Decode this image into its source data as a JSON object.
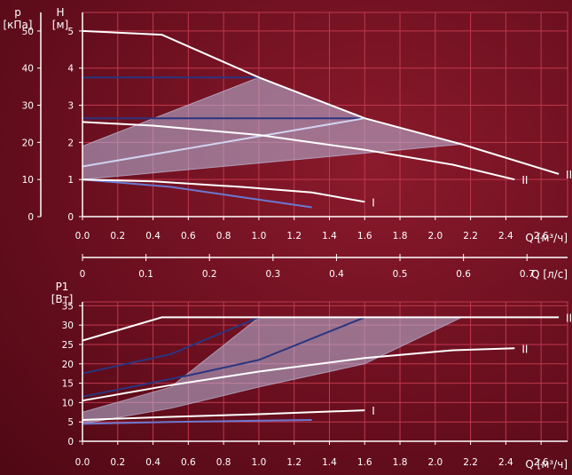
{
  "chart_data": [
    {
      "type": "line",
      "title": "",
      "left_axis": {
        "label_line1": "p",
        "label_line2": "[кПа]",
        "ticks": [
          0,
          10,
          20,
          30,
          40,
          50
        ]
      },
      "right_axis": {
        "label_line1": "H",
        "label_line2": "[м]",
        "ticks": [
          0,
          1,
          2,
          3,
          4,
          5
        ],
        "ylim": [
          0,
          5.5
        ]
      },
      "x_axis": {
        "label": "Q [м³/ч]",
        "ticks": [
          "0.0",
          "0.2",
          "0.4",
          "0.6",
          "0.8",
          "1.0",
          "1.2",
          "1.4",
          "1.6",
          "1.8",
          "2.0",
          "2.2",
          "2.4",
          "2.6"
        ],
        "xlim": [
          0,
          2.75
        ]
      },
      "second_x_axis": {
        "label": "Q [л/с]",
        "ticks": [
          "0",
          "0.1",
          "0.2",
          "0.3",
          "0.4",
          "0.5",
          "0.6",
          "0.7"
        ]
      },
      "series": [
        {
          "name": "III",
          "points": [
            [
              0,
              5.0
            ],
            [
              0.45,
              4.9
            ],
            [
              1.0,
              3.75
            ],
            [
              1.6,
              2.65
            ],
            [
              2.15,
              1.95
            ],
            [
              2.7,
              1.15
            ]
          ]
        },
        {
          "name": "II",
          "points": [
            [
              0,
              2.55
            ],
            [
              0.4,
              2.45
            ],
            [
              1.0,
              2.2
            ],
            [
              1.6,
              1.8
            ],
            [
              2.1,
              1.4
            ],
            [
              2.45,
              1.0
            ]
          ]
        },
        {
          "name": "I",
          "points": [
            [
              0,
              1.0
            ],
            [
              0.4,
              0.95
            ],
            [
              0.9,
              0.8
            ],
            [
              1.3,
              0.65
            ],
            [
              1.6,
              0.4
            ]
          ]
        }
      ],
      "control_lines": [
        {
          "points": [
            [
              0,
              3.75
            ],
            [
              1.0,
              3.75
            ]
          ]
        },
        {
          "points": [
            [
              0,
              2.65
            ],
            [
              1.6,
              2.65
            ]
          ]
        },
        {
          "points": [
            [
              0,
              1.0
            ],
            [
              0.5,
              0.8
            ],
            [
              1.3,
              0.25
            ]
          ]
        },
        {
          "points": [
            [
              0,
              1.35
            ],
            [
              1.6,
              2.65
            ]
          ]
        }
      ],
      "range_area": {
        "points": [
          [
            0,
            1.0
          ],
          [
            0,
            1.9
          ],
          [
            1.0,
            3.75
          ],
          [
            1.6,
            2.65
          ],
          [
            2.15,
            1.95
          ],
          [
            0,
            1.0
          ]
        ]
      }
    },
    {
      "type": "line",
      "title": "",
      "y_axis": {
        "label_line1": "P1",
        "label_line2": "[Вт]",
        "ticks": [
          0,
          5,
          10,
          15,
          20,
          25,
          30,
          35
        ],
        "ylim": [
          0,
          36
        ]
      },
      "x_axis": {
        "label": "Q [м³/ч]",
        "ticks": [
          "0.0",
          "0.2",
          "0.4",
          "0.6",
          "0.8",
          "1.0",
          "1.2",
          "1.4",
          "1.6",
          "1.8",
          "2.0",
          "2.2",
          "2.4",
          "2.6"
        ],
        "xlim": [
          0,
          2.75
        ]
      },
      "series": [
        {
          "name": "III",
          "points": [
            [
              0,
              26
            ],
            [
              0.45,
              32
            ],
            [
              2.7,
              32
            ]
          ]
        },
        {
          "name": "II",
          "points": [
            [
              0,
              10.5
            ],
            [
              0.5,
              14.5
            ],
            [
              1.0,
              18
            ],
            [
              1.6,
              21.5
            ],
            [
              2.1,
              23.5
            ],
            [
              2.45,
              24
            ]
          ]
        },
        {
          "name": "I",
          "points": [
            [
              0,
              5.5
            ],
            [
              0.5,
              6.3
            ],
            [
              1.0,
              7
            ],
            [
              1.6,
              8
            ]
          ]
        }
      ],
      "control_lines": [
        {
          "points": [
            [
              0,
              17.5
            ],
            [
              0.5,
              22.5
            ],
            [
              1.0,
              32
            ]
          ]
        },
        {
          "points": [
            [
              0,
              11.5
            ],
            [
              0.6,
              17
            ],
            [
              1.0,
              21
            ],
            [
              1.6,
              32
            ]
          ]
        },
        {
          "points": [
            [
              0,
              4.5
            ],
            [
              0.5,
              5
            ],
            [
              1.3,
              5.5
            ]
          ]
        }
      ],
      "range_area": {
        "points": [
          [
            0,
            4.5
          ],
          [
            0,
            7.5
          ],
          [
            0.5,
            14
          ],
          [
            1.0,
            32
          ],
          [
            2.15,
            32
          ],
          [
            1.6,
            20
          ],
          [
            1.0,
            14
          ],
          [
            0.5,
            8.5
          ],
          [
            0,
            4.5
          ]
        ]
      }
    }
  ]
}
